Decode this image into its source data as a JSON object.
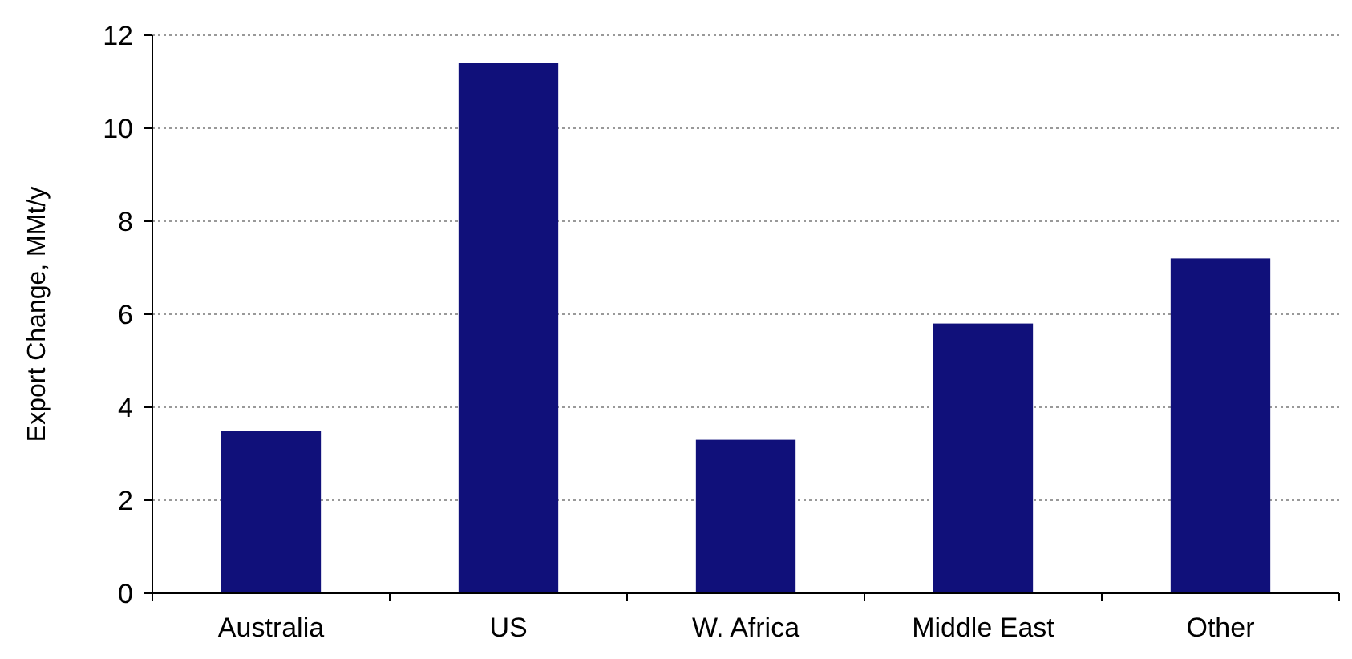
{
  "chart_data": {
    "type": "bar",
    "ylabel": "Export Change, MMt/y",
    "categories": [
      "Australia",
      "US",
      "W. Africa",
      "Middle East",
      "Other"
    ],
    "values": [
      3.5,
      11.4,
      3.3,
      5.8,
      7.2
    ],
    "color": "#10107a",
    "ylim": [
      0,
      12
    ],
    "yticks": [
      0,
      2,
      4,
      6,
      8,
      10,
      12
    ],
    "grid": "y"
  }
}
